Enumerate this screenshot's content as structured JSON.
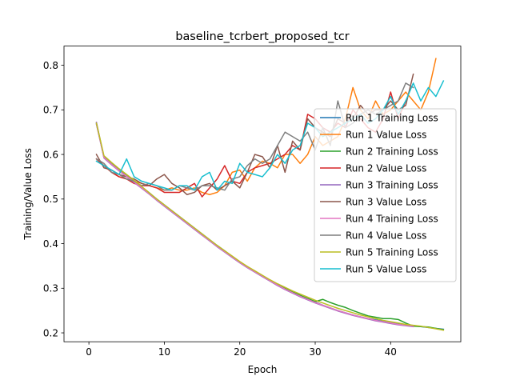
{
  "chart_data": {
    "type": "line",
    "title": "baseline_tcrbert_proposed_tcr",
    "xlabel": "Epoch",
    "ylabel": "Training/Value Loss",
    "xlim": [
      -3.3,
      49.3
    ],
    "ylim": [
      0.18,
      0.843
    ],
    "xticks": [
      0,
      10,
      20,
      30,
      40
    ],
    "yticks": [
      0.2,
      0.3,
      0.4,
      0.5,
      0.6,
      0.7,
      0.8
    ],
    "legend_position": "right",
    "grid": false,
    "series": [
      {
        "name": "Run 1 Training Loss",
        "color": "#1f77b4",
        "x": [
          1,
          2,
          3,
          4,
          5,
          6,
          7,
          8,
          9,
          10,
          11,
          12,
          13,
          14,
          15,
          16,
          17,
          18,
          19,
          20,
          21,
          22,
          23,
          24,
          25,
          26,
          27,
          28,
          29,
          30,
          31,
          32,
          33,
          34,
          35,
          36,
          37,
          38,
          39,
          40,
          41,
          42,
          43,
          44,
          45,
          46,
          47
        ],
        "y": [
          0.668,
          0.593,
          0.578,
          0.565,
          0.553,
          0.54,
          0.527,
          0.514,
          0.5,
          0.487,
          0.474,
          0.461,
          0.448,
          0.435,
          0.422,
          0.409,
          0.396,
          0.384,
          0.371,
          0.359,
          0.348,
          0.338,
          0.328,
          0.318,
          0.308,
          0.299,
          0.291,
          0.283,
          0.276,
          0.269,
          0.262,
          0.256,
          0.25,
          0.245,
          0.24,
          0.236,
          0.232,
          0.229,
          0.226,
          0.223,
          0.22,
          0.218,
          0.216,
          0.214,
          0.212,
          0.21,
          0.208
        ]
      },
      {
        "name": "Run 1 Value Loss",
        "color": "#ff7f0e",
        "x": [
          1,
          2,
          3,
          4,
          5,
          6,
          7,
          8,
          9,
          10,
          11,
          12,
          13,
          14,
          15,
          16,
          17,
          18,
          19,
          20,
          21,
          22,
          23,
          24,
          25,
          26,
          27,
          28,
          29,
          30,
          31,
          32,
          33,
          34,
          35,
          36,
          37,
          38,
          39,
          40,
          41,
          42,
          43,
          44,
          45,
          46
        ],
        "y": [
          0.59,
          0.575,
          0.56,
          0.55,
          0.545,
          0.54,
          0.535,
          0.53,
          0.525,
          0.52,
          0.525,
          0.52,
          0.52,
          0.525,
          0.515,
          0.51,
          0.515,
          0.53,
          0.56,
          0.565,
          0.54,
          0.57,
          0.585,
          0.58,
          0.57,
          0.6,
          0.6,
          0.58,
          0.6,
          0.64,
          0.62,
          0.63,
          0.64,
          0.68,
          0.75,
          0.7,
          0.68,
          0.72,
          0.69,
          0.7,
          0.72,
          0.74,
          0.72,
          0.7,
          0.74,
          0.815
        ]
      },
      {
        "name": "Run 2 Training Loss",
        "color": "#2ca02c",
        "x": [
          1,
          2,
          3,
          4,
          5,
          6,
          7,
          8,
          9,
          10,
          11,
          12,
          13,
          14,
          15,
          16,
          17,
          18,
          19,
          20,
          21,
          22,
          23,
          24,
          25,
          26,
          27,
          28,
          29,
          30,
          31,
          32,
          33,
          34,
          35,
          36,
          37,
          38,
          39,
          40,
          41,
          42,
          43,
          44,
          45,
          46,
          47
        ],
        "y": [
          0.67,
          0.594,
          0.579,
          0.566,
          0.553,
          0.54,
          0.527,
          0.513,
          0.499,
          0.486,
          0.473,
          0.46,
          0.447,
          0.434,
          0.421,
          0.408,
          0.395,
          0.383,
          0.371,
          0.359,
          0.348,
          0.338,
          0.328,
          0.318,
          0.308,
          0.3,
          0.292,
          0.284,
          0.277,
          0.27,
          0.275,
          0.268,
          0.262,
          0.257,
          0.25,
          0.244,
          0.238,
          0.235,
          0.232,
          0.232,
          0.23,
          0.222,
          0.215,
          0.214,
          0.213,
          0.21,
          0.207
        ]
      },
      {
        "name": "Run 2 Value Loss",
        "color": "#d62728",
        "x": [
          1,
          2,
          3,
          4,
          5,
          6,
          7,
          8,
          9,
          10,
          11,
          12,
          13,
          14,
          15,
          16,
          17,
          18,
          19,
          20,
          21,
          22,
          23,
          24,
          25,
          26,
          27,
          28,
          29,
          30,
          31,
          32,
          33,
          34,
          35,
          36,
          37,
          38,
          39,
          40,
          41,
          42
        ],
        "y": [
          0.59,
          0.575,
          0.56,
          0.55,
          0.545,
          0.535,
          0.53,
          0.53,
          0.525,
          0.515,
          0.515,
          0.515,
          0.525,
          0.535,
          0.505,
          0.525,
          0.545,
          0.575,
          0.54,
          0.535,
          0.56,
          0.57,
          0.575,
          0.58,
          0.59,
          0.6,
          0.62,
          0.61,
          0.69,
          0.68,
          0.66,
          0.65,
          0.67,
          0.66,
          0.7,
          0.68,
          0.66,
          0.65,
          0.68,
          0.74,
          0.68,
          0.72
        ]
      },
      {
        "name": "Run 3 Training Loss",
        "color": "#9467bd",
        "x": [
          1,
          2,
          3,
          4,
          5,
          6,
          7,
          8,
          9,
          10,
          11,
          12,
          13,
          14,
          15,
          16,
          17,
          18,
          19,
          20,
          21,
          22,
          23,
          24,
          25,
          26,
          27,
          28,
          29,
          30,
          31,
          32,
          33,
          34,
          35,
          36,
          37,
          38,
          39,
          40,
          41,
          42,
          43
        ],
        "y": [
          0.672,
          0.592,
          0.577,
          0.563,
          0.55,
          0.537,
          0.524,
          0.511,
          0.497,
          0.484,
          0.471,
          0.458,
          0.445,
          0.432,
          0.419,
          0.406,
          0.393,
          0.381,
          0.369,
          0.357,
          0.346,
          0.336,
          0.326,
          0.316,
          0.306,
          0.297,
          0.289,
          0.281,
          0.274,
          0.267,
          0.261,
          0.255,
          0.249,
          0.244,
          0.239,
          0.235,
          0.231,
          0.227,
          0.224,
          0.221,
          0.218,
          0.216,
          0.214
        ]
      },
      {
        "name": "Run 3 Value Loss",
        "color": "#8c564b",
        "x": [
          1,
          2,
          3,
          4,
          5,
          6,
          7,
          8,
          9,
          10,
          11,
          12,
          13,
          14,
          15,
          16,
          17,
          18,
          19,
          20,
          21,
          22,
          23,
          24,
          25,
          26,
          27,
          28,
          29,
          30,
          31,
          32,
          33,
          34,
          35,
          36,
          37,
          38,
          39,
          40,
          41,
          42,
          43
        ],
        "y": [
          0.6,
          0.57,
          0.565,
          0.555,
          0.55,
          0.545,
          0.535,
          0.53,
          0.545,
          0.555,
          0.535,
          0.525,
          0.51,
          0.515,
          0.53,
          0.535,
          0.52,
          0.53,
          0.54,
          0.525,
          0.56,
          0.6,
          0.595,
          0.57,
          0.62,
          0.56,
          0.63,
          0.61,
          0.68,
          0.66,
          0.65,
          0.64,
          0.68,
          0.67,
          0.68,
          0.71,
          0.69,
          0.7,
          0.7,
          0.72,
          0.7,
          0.71,
          0.78
        ]
      },
      {
        "name": "Run 4 Training Loss",
        "color": "#e377c2",
        "x": [
          1,
          2,
          3,
          4,
          5,
          6,
          7,
          8,
          9,
          10,
          11,
          12,
          13,
          14,
          15,
          16,
          17,
          18,
          19,
          20,
          21,
          22,
          23,
          24,
          25,
          26,
          27,
          28,
          29,
          30,
          31,
          32,
          33,
          34,
          35,
          36,
          37,
          38,
          39,
          40,
          41,
          42,
          43
        ],
        "y": [
          0.668,
          0.593,
          0.578,
          0.564,
          0.551,
          0.538,
          0.525,
          0.512,
          0.498,
          0.485,
          0.472,
          0.459,
          0.446,
          0.433,
          0.42,
          0.407,
          0.394,
          0.382,
          0.37,
          0.358,
          0.347,
          0.337,
          0.327,
          0.317,
          0.307,
          0.298,
          0.29,
          0.282,
          0.275,
          0.268,
          0.262,
          0.256,
          0.25,
          0.245,
          0.24,
          0.236,
          0.232,
          0.228,
          0.225,
          0.222,
          0.219,
          0.217,
          0.215
        ]
      },
      {
        "name": "Run 4 Value Loss",
        "color": "#7f7f7f",
        "x": [
          1,
          2,
          3,
          4,
          5,
          6,
          7,
          8,
          9,
          10,
          11,
          12,
          13,
          14,
          15,
          16,
          17,
          18,
          19,
          20,
          21,
          22,
          23,
          24,
          25,
          26,
          27,
          28,
          29,
          30,
          31,
          32,
          33,
          34,
          35,
          36,
          37,
          38,
          39,
          40,
          41,
          42,
          43
        ],
        "y": [
          0.59,
          0.58,
          0.56,
          0.555,
          0.545,
          0.54,
          0.53,
          0.535,
          0.53,
          0.52,
          0.52,
          0.53,
          0.525,
          0.52,
          0.53,
          0.53,
          0.525,
          0.52,
          0.545,
          0.55,
          0.575,
          0.59,
          0.58,
          0.59,
          0.62,
          0.65,
          0.64,
          0.63,
          0.65,
          0.61,
          0.66,
          0.62,
          0.72,
          0.66,
          0.67,
          0.69,
          0.7,
          0.69,
          0.7,
          0.71,
          0.72,
          0.76,
          0.75
        ]
      },
      {
        "name": "Run 5 Training Loss",
        "color": "#bcbd22",
        "x": [
          1,
          2,
          3,
          4,
          5,
          6,
          7,
          8,
          9,
          10,
          11,
          12,
          13,
          14,
          15,
          16,
          17,
          18,
          19,
          20,
          21,
          22,
          23,
          24,
          25,
          26,
          27,
          28,
          29,
          30,
          31,
          32,
          33,
          34,
          35,
          36,
          37,
          38,
          39,
          40,
          41,
          42,
          43,
          44,
          45,
          46,
          47
        ],
        "y": [
          0.67,
          0.597,
          0.582,
          0.568,
          0.555,
          0.542,
          0.528,
          0.514,
          0.5,
          0.487,
          0.474,
          0.461,
          0.448,
          0.435,
          0.422,
          0.409,
          0.396,
          0.384,
          0.372,
          0.36,
          0.349,
          0.339,
          0.329,
          0.319,
          0.31,
          0.302,
          0.294,
          0.287,
          0.28,
          0.273,
          0.267,
          0.261,
          0.255,
          0.25,
          0.245,
          0.24,
          0.236,
          0.232,
          0.228,
          0.225,
          0.222,
          0.219,
          0.217,
          0.215,
          0.212,
          0.209,
          0.206
        ]
      },
      {
        "name": "Run 5 Value Loss",
        "color": "#17becf",
        "x": [
          1,
          2,
          3,
          4,
          5,
          6,
          7,
          8,
          9,
          10,
          11,
          12,
          13,
          14,
          15,
          16,
          17,
          18,
          19,
          20,
          21,
          22,
          23,
          24,
          25,
          26,
          27,
          28,
          29,
          30,
          31,
          32,
          33,
          34,
          35,
          36,
          37,
          38,
          39,
          40,
          41,
          42,
          43,
          44,
          45,
          46,
          47
        ],
        "y": [
          0.585,
          0.575,
          0.565,
          0.555,
          0.59,
          0.55,
          0.54,
          0.535,
          0.53,
          0.525,
          0.52,
          0.53,
          0.53,
          0.52,
          0.55,
          0.56,
          0.52,
          0.54,
          0.535,
          0.58,
          0.56,
          0.555,
          0.55,
          0.57,
          0.6,
          0.58,
          0.61,
          0.62,
          0.67,
          0.66,
          0.64,
          0.65,
          0.66,
          0.67,
          0.68,
          0.69,
          0.67,
          0.68,
          0.7,
          0.73,
          0.69,
          0.72,
          0.76,
          0.72,
          0.75,
          0.73,
          0.765
        ]
      }
    ]
  }
}
